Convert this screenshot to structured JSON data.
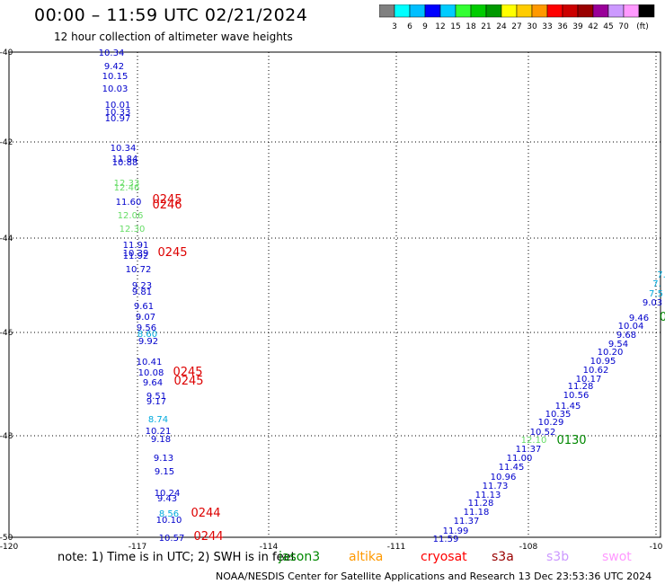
{
  "header": {
    "title": "00:00 – 11:59 UTC 02/21/2024",
    "subtitle": "12 hour collection of altimeter wave heights"
  },
  "colorbar": {
    "colors": [
      "#808080",
      "#00ffff",
      "#00bfff",
      "#0000ff",
      "#00ccff",
      "#33ff33",
      "#00cc00",
      "#009900",
      "#ffff00",
      "#ffcc00",
      "#ff9900",
      "#ff0000",
      "#cc0000",
      "#990000",
      "#990099",
      "#cc99ff",
      "#ff99ff",
      "#000000"
    ],
    "labels": [
      "3",
      "6",
      "9",
      "12",
      "15",
      "18",
      "21",
      "24",
      "27",
      "30",
      "33",
      "36",
      "39",
      "42",
      "45",
      "70",
      "(ft)"
    ]
  },
  "axes": {
    "lat_labels": [
      "-40",
      "-42",
      "-44",
      "-46",
      "-48",
      "-50"
    ],
    "lon_labels": [
      "-120",
      "-117",
      "-114",
      "-111",
      "-108",
      "-10"
    ]
  },
  "tracks": {
    "track1": [
      {
        "v": "10.34",
        "c": "#0000cc"
      },
      {
        "v": "9.42",
        "c": "#0000cc"
      },
      {
        "v": "10.15",
        "c": "#0000cc"
      },
      {
        "v": "10.03",
        "c": "#0000cc"
      },
      {
        "v": "10.01",
        "c": "#0000cc"
      },
      {
        "v": "10.33",
        "c": "#0000cc"
      },
      {
        "v": "10.97",
        "c": "#0000cc"
      },
      {
        "v": "10.34",
        "c": "#0000cc"
      },
      {
        "v": "11.84",
        "c": "#0000cc"
      },
      {
        "v": "10.88",
        "c": "#0000cc"
      },
      {
        "v": "12.33",
        "c": "#66dd66"
      },
      {
        "v": "12.46",
        "c": "#66dd66"
      },
      {
        "v": "11.60",
        "c": "#0000cc"
      },
      {
        "v": "12.06",
        "c": "#66dd66"
      },
      {
        "v": "12.30",
        "c": "#66dd66"
      },
      {
        "v": "11.91",
        "c": "#0000cc"
      },
      {
        "v": "10.39",
        "c": "#0000cc"
      },
      {
        "v": "11.92",
        "c": "#0000cc"
      },
      {
        "v": "10.72",
        "c": "#0000cc"
      },
      {
        "v": "9.23",
        "c": "#0000cc"
      },
      {
        "v": "9.81",
        "c": "#0000cc"
      },
      {
        "v": "9.61",
        "c": "#0000cc"
      },
      {
        "v": "9.07",
        "c": "#0000cc"
      },
      {
        "v": "9.56",
        "c": "#0000cc"
      },
      {
        "v": "8.60",
        "c": "#00aadd"
      },
      {
        "v": "9.92",
        "c": "#0000cc"
      },
      {
        "v": "10.41",
        "c": "#0000cc"
      },
      {
        "v": "10.08",
        "c": "#0000cc"
      },
      {
        "v": "9.64",
        "c": "#0000cc"
      },
      {
        "v": "9.51",
        "c": "#0000cc"
      },
      {
        "v": "9.17",
        "c": "#0000cc"
      },
      {
        "v": "8.74",
        "c": "#00aadd"
      },
      {
        "v": "10.21",
        "c": "#0000cc"
      },
      {
        "v": "9.18",
        "c": "#0000cc"
      },
      {
        "v": "9.13",
        "c": "#0000cc"
      },
      {
        "v": "9.15",
        "c": "#0000cc"
      },
      {
        "v": "10.24",
        "c": "#0000cc"
      },
      {
        "v": "9.43",
        "c": "#0000cc"
      },
      {
        "v": "8.56",
        "c": "#00aadd"
      },
      {
        "v": "10.10",
        "c": "#0000cc"
      },
      {
        "v": "10.57",
        "c": "#0000cc"
      }
    ],
    "track2": [
      {
        "v": "7.",
        "c": "#00aadd"
      },
      {
        "v": "7.",
        "c": "#00aadd"
      },
      {
        "v": "7.5",
        "c": "#00aadd"
      },
      {
        "v": "9.03",
        "c": "#0000cc"
      },
      {
        "v": "9.46",
        "c": "#0000cc"
      },
      {
        "v": "10.04",
        "c": "#0000cc"
      },
      {
        "v": "9.68",
        "c": "#0000cc"
      },
      {
        "v": "9.54",
        "c": "#0000cc"
      },
      {
        "v": "10.20",
        "c": "#0000cc"
      },
      {
        "v": "10.95",
        "c": "#0000cc"
      },
      {
        "v": "10.62",
        "c": "#0000cc"
      },
      {
        "v": "10.17",
        "c": "#0000cc"
      },
      {
        "v": "11.28",
        "c": "#0000cc"
      },
      {
        "v": "10.56",
        "c": "#0000cc"
      },
      {
        "v": "11.45",
        "c": "#0000cc"
      },
      {
        "v": "10.35",
        "c": "#0000cc"
      },
      {
        "v": "10.29",
        "c": "#0000cc"
      },
      {
        "v": "10.52",
        "c": "#0000cc"
      },
      {
        "v": "12.10",
        "c": "#66dd66"
      },
      {
        "v": "11.37",
        "c": "#0000cc"
      },
      {
        "v": "11.00",
        "c": "#0000cc"
      },
      {
        "v": "11.45",
        "c": "#0000cc"
      },
      {
        "v": "10.96",
        "c": "#0000cc"
      },
      {
        "v": "11.73",
        "c": "#0000cc"
      },
      {
        "v": "11.13",
        "c": "#0000cc"
      },
      {
        "v": "11.28",
        "c": "#0000cc"
      },
      {
        "v": "11.18",
        "c": "#0000cc"
      },
      {
        "v": "11.37",
        "c": "#0000cc"
      },
      {
        "v": "11.99",
        "c": "#0000cc"
      },
      {
        "v": "11.59",
        "c": "#0000cc"
      }
    ],
    "time_labels": [
      {
        "v": "0245",
        "c": "#dd0000"
      },
      {
        "v": "0246",
        "c": "#dd0000"
      },
      {
        "v": "0245",
        "c": "#dd0000"
      },
      {
        "v": "0245",
        "c": "#dd0000"
      },
      {
        "v": "0245",
        "c": "#dd0000"
      },
      {
        "v": "0244",
        "c": "#dd0000"
      },
      {
        "v": "0244",
        "c": "#dd0000"
      },
      {
        "v": "0130",
        "c": "#008800"
      },
      {
        "v": "0",
        "c": "#008800"
      }
    ]
  },
  "note": "note:  1) Time is in UTC; 2) SWH is in feet",
  "satellites": [
    {
      "name": "jason3",
      "color": "#008800"
    },
    {
      "name": "altika",
      "color": "#ff9900"
    },
    {
      "name": "cryosat",
      "color": "#ff0000"
    },
    {
      "name": "s3a",
      "color": "#990000"
    },
    {
      "name": "s3b",
      "color": "#cc99ff"
    },
    {
      "name": "swot",
      "color": "#ff99ff"
    }
  ],
  "footer": "NOAA/NESDIS Center for Satellite Applications and Research    13 Dec 23:53:36 UTC 2024"
}
